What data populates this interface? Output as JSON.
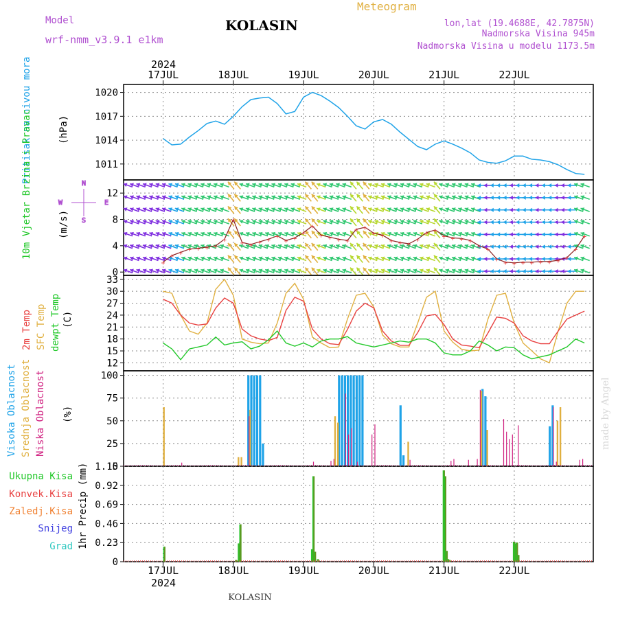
{
  "header": {
    "model_label": "Model",
    "model_name": "wrf-nmm_v3.9.1 e1km",
    "location": "KOLASIN",
    "title": "Meteogram",
    "coords": "lon,lat (19.4688E, 42.7875N)",
    "elevation": "Nadmorska Visina 945m",
    "model_elevation": "Nadmorska Visina u modelu 1173.5m",
    "footer_location": "KOLASIN",
    "credit": "made by Angel"
  },
  "colors": {
    "purple": "#b050d0",
    "gold": "#e0b040",
    "sky": "#1fa3e8",
    "red": "#e84040",
    "green": "#22c82a",
    "orange": "#f08030",
    "olive": "#6a8c1e",
    "magenta": "#d02080",
    "blue": "#4040e0",
    "teal": "#30c8c0"
  },
  "chart_data": [
    {
      "type": "line",
      "panel": "pressure",
      "ylabel_name": "Pritisak na nivou mora",
      "ylabel_unit": "(hPa)",
      "ylim": [
        1009,
        1021
      ],
      "yticks": [
        1011,
        1014,
        1017,
        1020
      ],
      "x_days": [
        "17JUL",
        "18JUL",
        "19JUL",
        "20JUL",
        "21JUL",
        "22JUL"
      ],
      "year": "2024",
      "x_hours": [
        0,
        3,
        6,
        9,
        12,
        15,
        18,
        21,
        24,
        27,
        30,
        33,
        36,
        39,
        42,
        45,
        48,
        51,
        54,
        57,
        60,
        63,
        66,
        69,
        72,
        75,
        78,
        81,
        84,
        87,
        90,
        93,
        96,
        99,
        102,
        105,
        108,
        111,
        114,
        117,
        120,
        123,
        126,
        129,
        132,
        135,
        138,
        141,
        144
      ],
      "series": [
        {
          "name": "Pritisak na nivou mora",
          "values": [
            1014.2,
            1013.4,
            1013.5,
            1014.4,
            1015.2,
            1016.1,
            1016.4,
            1016.0,
            1017.0,
            1018.2,
            1019.1,
            1019.3,
            1019.4,
            1018.6,
            1017.3,
            1017.6,
            1019.4,
            1020.0,
            1019.6,
            1018.9,
            1018.1,
            1017.0,
            1015.8,
            1015.4,
            1016.3,
            1016.6,
            1016.0,
            1015.0,
            1014.1,
            1013.2,
            1012.8,
            1013.5,
            1013.9,
            1013.5,
            1013.0,
            1012.4,
            1011.5,
            1011.2,
            1011.1,
            1011.4,
            1012.0,
            1012.0,
            1011.6,
            1011.5,
            1011.3,
            1010.9,
            1010.3,
            1009.8,
            1009.7
          ]
        }
      ],
      "grid": true
    },
    {
      "type": "line",
      "panel": "wind",
      "ylabel_name": "10m Vjetar Brzina i Pravac",
      "ylabel_unit": "(m/s)",
      "compass": {
        "n": "N",
        "w": "W",
        "e": "E",
        "s": "S"
      },
      "ylim": [
        -0.5,
        14
      ],
      "yticks": [
        0,
        4,
        8,
        12
      ],
      "series": [
        {
          "name": "speed",
          "values": [
            1.5,
            2.5,
            3.0,
            3.5,
            3.6,
            3.8,
            4.0,
            5.0,
            8.0,
            4.5,
            4.2,
            4.6,
            5.0,
            5.5,
            4.8,
            5.2,
            6.0,
            7.0,
            5.6,
            5.3,
            5.0,
            4.8,
            6.5,
            6.8,
            5.9,
            5.6,
            4.8,
            4.5,
            4.3,
            5.0,
            6.0,
            6.4,
            5.5,
            5.2,
            5.1,
            4.8,
            4.0,
            3.5,
            2.0,
            1.5,
            1.4,
            1.5,
            1.5,
            1.6,
            1.6,
            1.8,
            2.2,
            3.5,
            5.5
          ]
        }
      ],
      "arrow_direction": "from east, veering north-east to north",
      "grid": true
    },
    {
      "type": "line",
      "panel": "temperature",
      "ylabel_names": [
        "2m Temp",
        "SFC Temp",
        "dewpt Temp"
      ],
      "ylabel_unit": "(C)",
      "ylim": [
        10,
        34
      ],
      "yticks": [
        12,
        15,
        18,
        21,
        24,
        27,
        30,
        33
      ],
      "series": [
        {
          "name": "2m Temp",
          "values": [
            28.0,
            27.0,
            24.0,
            22.0,
            21.5,
            21.8,
            25.8,
            28.3,
            27.0,
            20.5,
            18.8,
            18.0,
            17.6,
            18.4,
            25.2,
            28.5,
            27.5,
            20.5,
            18.0,
            16.8,
            16.6,
            20.4,
            25.0,
            27.0,
            25.8,
            20.0,
            17.5,
            16.4,
            16.4,
            19.6,
            23.8,
            24.2,
            21.6,
            18.0,
            16.5,
            16.2,
            15.8,
            19.5,
            23.5,
            23.2,
            22.0,
            18.8,
            17.5,
            16.8,
            16.8,
            20.0,
            23.0,
            24.0,
            25.0
          ]
        },
        {
          "name": "SFC Temp",
          "values": [
            30.0,
            29.5,
            24.0,
            20.0,
            19.2,
            22.0,
            30.5,
            33.0,
            29.0,
            18.0,
            17.2,
            16.8,
            17.0,
            22.0,
            29.5,
            32.0,
            28.0,
            18.5,
            17.0,
            15.8,
            16.0,
            23.0,
            29.0,
            29.5,
            26.0,
            19.0,
            16.8,
            16.0,
            16.0,
            22.0,
            28.5,
            30.0,
            20.0,
            17.2,
            15.4,
            15.0,
            15.2,
            23.0,
            29.0,
            29.5,
            22.0,
            17.0,
            15.0,
            13.0,
            12.0,
            20.0,
            27.0,
            30.0,
            30.0
          ]
        },
        {
          "name": "dewpt Temp",
          "values": [
            17.0,
            15.5,
            12.8,
            15.5,
            16.0,
            16.5,
            18.5,
            16.5,
            17.0,
            17.3,
            15.5,
            16.2,
            17.8,
            20.0,
            17.0,
            16.2,
            17.0,
            16.0,
            17.5,
            18.0,
            18.0,
            18.6,
            17.0,
            16.5,
            16.0,
            16.5,
            17.0,
            17.5,
            17.2,
            18.0,
            18.0,
            17.0,
            14.5,
            14.0,
            14.0,
            15.0,
            17.5,
            16.5,
            15.0,
            16.0,
            15.8,
            14.0,
            13.0,
            13.5,
            14.0,
            15.0,
            16.0,
            18.0,
            17.0
          ]
        }
      ],
      "grid": true
    },
    {
      "type": "bar",
      "panel": "cloud",
      "ylabel_names": [
        "Visoka Oblacnost",
        "Srednja Oblacnost",
        "Niska Oblacnost"
      ],
      "ylabel_unit": "(%)",
      "ylim": [
        0,
        105
      ],
      "yticks": [
        0,
        25,
        50,
        75,
        100
      ],
      "series": [
        {
          "name": "Visoka Oblacnost",
          "x": [
            29,
            30,
            31,
            32,
            33,
            34,
            60,
            61,
            62,
            63,
            64,
            65,
            66,
            67,
            68,
            81,
            82,
            109,
            110,
            132,
            133
          ],
          "values": [
            100,
            100,
            100,
            100,
            100,
            25,
            100,
            100,
            100,
            100,
            100,
            100,
            100,
            100,
            100,
            67,
            12,
            85,
            77,
            44,
            67
          ]
        },
        {
          "name": "Srednja Oblacnost",
          "x": [
            0.5,
            26,
            27,
            30,
            59,
            60,
            84,
            109,
            111,
            135,
            136
          ],
          "values": [
            65,
            10,
            10,
            62,
            55,
            48,
            27,
            83,
            40,
            50,
            65
          ]
        },
        {
          "name": "Niska Oblacnost",
          "x": [
            6,
            29,
            51,
            57,
            58,
            62,
            63,
            64,
            66,
            71,
            72,
            84,
            98,
            99,
            104,
            107,
            108,
            116,
            117,
            118,
            119,
            121,
            133,
            134,
            142,
            143
          ],
          "values": [
            4,
            55,
            5,
            6,
            8,
            80,
            35,
            42,
            5,
            35,
            46,
            7,
            6,
            8,
            7,
            8,
            84,
            52,
            38,
            30,
            35,
            45,
            65,
            5,
            7,
            8
          ]
        }
      ],
      "grid": true
    },
    {
      "type": "bar",
      "panel": "precip",
      "ylabel_unit": "1hr Precip (mm)",
      "legend": [
        "Ukupna Kisa",
        "Konvek.Kisa",
        "Zaledj.Kisa",
        "Snijeg",
        "Grad"
      ],
      "ylim": [
        0,
        1.15
      ],
      "yticks": [
        0,
        0.23,
        0.46,
        0.69,
        0.92,
        1.15
      ],
      "series": [
        {
          "name": "Ukupna Kisa",
          "x": [
            0.5,
            25,
            26,
            26.5,
            51,
            51.5,
            52,
            53,
            96,
            96.5,
            97,
            97.5,
            98,
            120,
            120.5,
            121,
            121.5
          ],
          "values": [
            0.18,
            0.02,
            0.22,
            0.45,
            0.15,
            1.03,
            0.12,
            0.03,
            1.1,
            1.03,
            0.13,
            0.03,
            0.02,
            0.24,
            0.22,
            0.23,
            0.08
          ]
        }
      ],
      "grid": true
    }
  ]
}
